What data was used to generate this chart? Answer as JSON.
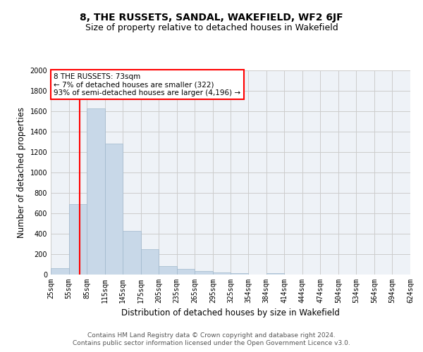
{
  "title": "8, THE RUSSETS, SANDAL, WAKEFIELD, WF2 6JF",
  "subtitle": "Size of property relative to detached houses in Wakefield",
  "xlabel": "Distribution of detached houses by size in Wakefield",
  "ylabel": "Number of detached properties",
  "bar_color": "#c8d8e8",
  "bar_edge_color": "#a0b8cc",
  "grid_color": "#cccccc",
  "background_color": "#eef2f7",
  "annotation_line1": "8 THE RUSSETS: 73sqm",
  "annotation_line2": "← 7% of detached houses are smaller (322)",
  "annotation_line3": "93% of semi-detached houses are larger (4,196) →",
  "annotation_box_color": "white",
  "annotation_box_edge_color": "red",
  "vline_x": 73,
  "vline_color": "red",
  "ylim": [
    0,
    2000
  ],
  "yticks": [
    0,
    200,
    400,
    600,
    800,
    1000,
    1200,
    1400,
    1600,
    1800,
    2000
  ],
  "bins": [
    25,
    55,
    85,
    115,
    145,
    175,
    205,
    235,
    265,
    295,
    325,
    354,
    384,
    414,
    444,
    474,
    504,
    534,
    564,
    594,
    624
  ],
  "bar_heights": [
    60,
    690,
    1630,
    1280,
    430,
    245,
    80,
    55,
    35,
    22,
    15,
    0,
    17,
    0,
    0,
    0,
    0,
    0,
    0,
    0
  ],
  "tick_labels": [
    "25sqm",
    "55sqm",
    "85sqm",
    "115sqm",
    "145sqm",
    "175sqm",
    "205sqm",
    "235sqm",
    "265sqm",
    "295sqm",
    "325sqm",
    "354sqm",
    "384sqm",
    "414sqm",
    "444sqm",
    "474sqm",
    "504sqm",
    "534sqm",
    "564sqm",
    "594sqm",
    "624sqm"
  ],
  "footnote1": "Contains HM Land Registry data © Crown copyright and database right 2024.",
  "footnote2": "Contains public sector information licensed under the Open Government Licence v3.0.",
  "title_fontsize": 10,
  "subtitle_fontsize": 9,
  "label_fontsize": 8.5,
  "tick_fontsize": 7,
  "footnote_fontsize": 6.5
}
